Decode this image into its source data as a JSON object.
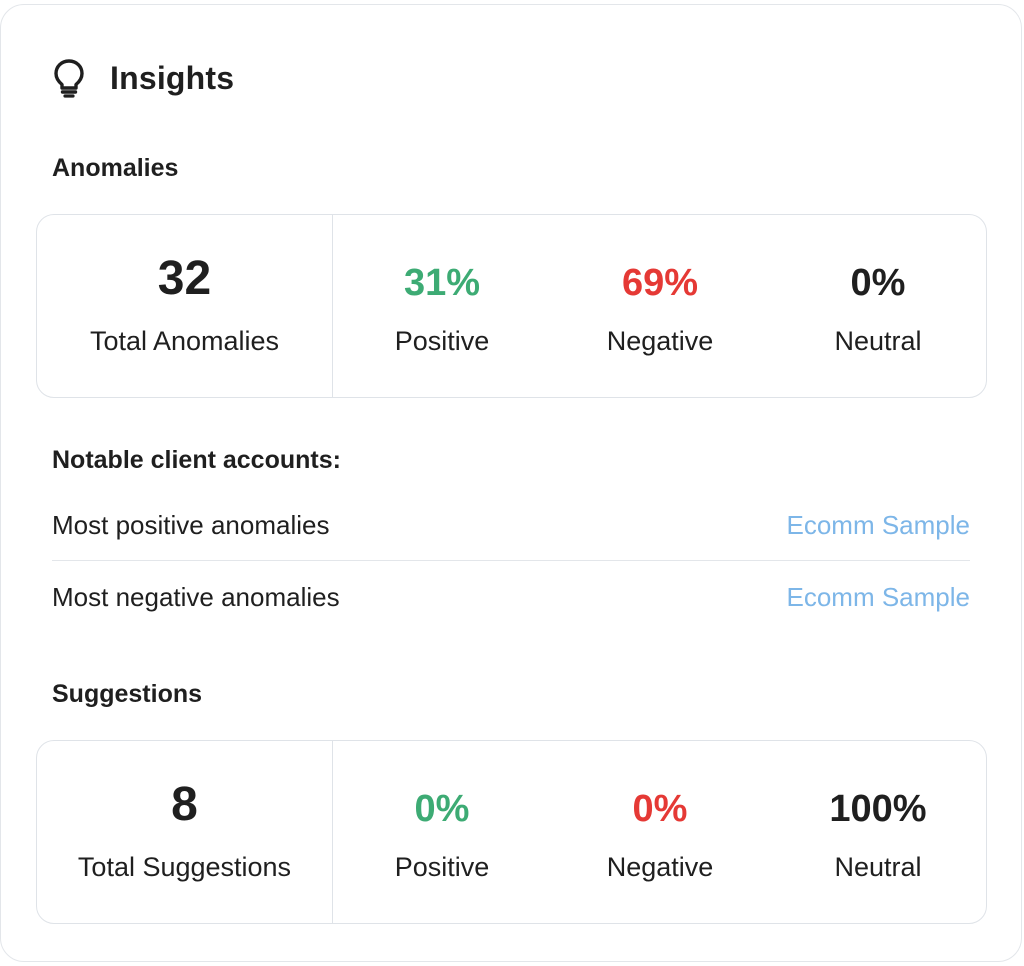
{
  "insights": {
    "title": "Insights",
    "icon": "lightbulb-icon"
  },
  "anomalies": {
    "section_title": "Anomalies",
    "total_value": "32",
    "total_label": "Total Anomalies",
    "positive_value": "31%",
    "positive_label": "Positive",
    "negative_value": "69%",
    "negative_label": "Negative",
    "neutral_value": "0%",
    "neutral_label": "Neutral"
  },
  "notable": {
    "title": "Notable client accounts:",
    "rows": [
      {
        "label": "Most positive anomalies",
        "link": "Ecomm Sample"
      },
      {
        "label": "Most negative anomalies",
        "link": "Ecomm Sample"
      }
    ]
  },
  "suggestions": {
    "section_title": "Suggestions",
    "total_value": "8",
    "total_label": "Total Suggestions",
    "positive_value": "0%",
    "positive_label": "Positive",
    "negative_value": "0%",
    "negative_label": "Negative",
    "neutral_value": "100%",
    "neutral_label": "Neutral"
  },
  "colors": {
    "positive": "#3dab74",
    "negative": "#e53935",
    "link": "#7db6e8",
    "border": "#dfe3e8"
  }
}
